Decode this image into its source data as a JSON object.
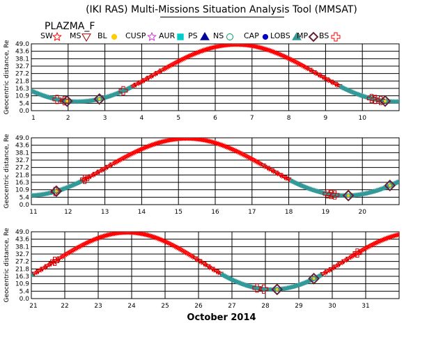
{
  "window": {
    "title": "(IKI RAS) Multi-Missions Situation Analysis Tool (MMSAT)"
  },
  "plot_label": "PLAZMA_F",
  "legend": [
    {
      "label": "SW",
      "icon": "red-star-icon",
      "color": "#ff0000"
    },
    {
      "label": "MS",
      "icon": "maroon-triangle-icon",
      "color": "#990000"
    },
    {
      "label": "BL",
      "icon": "yellow-dot-icon",
      "color": "#ffcc00"
    },
    {
      "label": "CUSP",
      "icon": "magenta-star-icon",
      "color": "#cc33cc"
    },
    {
      "label": "AUR",
      "icon": "cyan-square-icon",
      "color": "#00cccc"
    },
    {
      "label": "PS",
      "icon": "navy-triangle-icon",
      "color": "#000099"
    },
    {
      "label": "NS",
      "icon": "green-circle-icon",
      "color": "#009966"
    },
    {
      "label": "CAP",
      "icon": "blue-dot-icon",
      "color": "#0000cc"
    },
    {
      "label": "LOBS",
      "icon": "teal-triangle-icon",
      "color": "#339999"
    },
    {
      "label": "MP",
      "icon": "dark-diamond-icon",
      "color": "#662233"
    },
    {
      "label": "BS",
      "icon": "red-cross-icon",
      "color": "#ff0000"
    }
  ],
  "chart_data": {
    "type": "scatter",
    "xlabel": "October 2014",
    "ylabel": "Geocentric distance, Re",
    "ylim": [
      0,
      49
    ],
    "yticks": [
      "0.0",
      "5.4",
      "10.9",
      "16.3",
      "21.8",
      "27.2",
      "32.7",
      "38.1",
      "43.6",
      "49.0"
    ],
    "grid": true,
    "orbit": {
      "apogee_re": 48.5,
      "perigee_re": 6.6,
      "period_days": 8.65,
      "perigee_day": 2.25
    },
    "panels": [
      {
        "xlim": [
          1,
          11
        ],
        "xticks": [
          "1",
          "2",
          "3",
          "4",
          "5",
          "6",
          "7",
          "8",
          "9",
          "10"
        ]
      },
      {
        "xlim": [
          11,
          21
        ],
        "xticks": [
          "11",
          "12",
          "13",
          "14",
          "15",
          "16",
          "17",
          "18",
          "19",
          "20"
        ]
      },
      {
        "xlim": [
          21,
          32
        ],
        "xticks": [
          "21",
          "22",
          "23",
          "24",
          "25",
          "26",
          "27",
          "28",
          "29",
          "30",
          "31"
        ]
      }
    ],
    "bow_shock_crossings": [
      1.7,
      1.9,
      3.5,
      10.25,
      10.35,
      10.5,
      11.65,
      12.45,
      19.05,
      19.15,
      19.25,
      21.7,
      27.75,
      27.95,
      30.75
    ],
    "magnetopause_crossings": [
      1.97,
      2.85,
      10.62,
      11.68,
      19.62,
      20.75,
      28.35,
      29.45
    ]
  }
}
